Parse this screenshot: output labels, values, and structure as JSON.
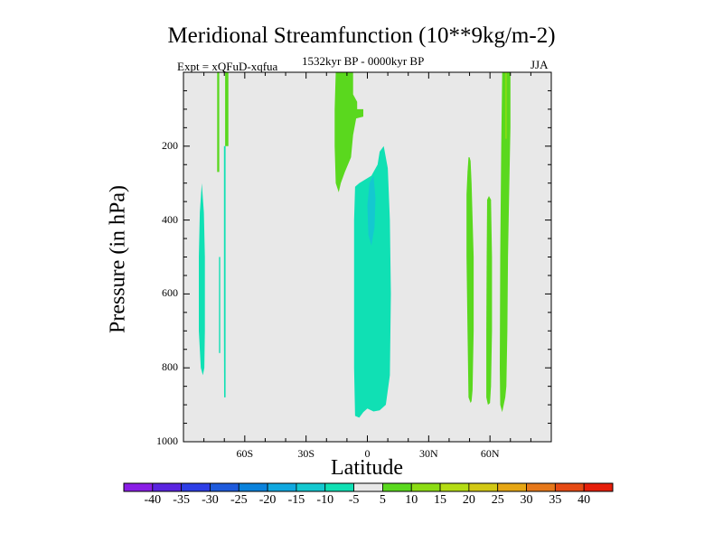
{
  "chart_data": {
    "type": "heatmap",
    "title": "Meridional Streamfunction (10**9kg/m-2)",
    "subtitle_left": "Expt = xQFuD-xqfua",
    "subtitle_center": "1532kyr BP - 0000kyr BP",
    "subtitle_right": "JJA",
    "xlabel": "Latitude",
    "ylabel": "Pressure (in hPa)",
    "xlim": [
      -90,
      90
    ],
    "ylim": [
      1000,
      0
    ],
    "x_ticks": [
      {
        "value": -60,
        "label": "60S"
      },
      {
        "value": -30,
        "label": "30S"
      },
      {
        "value": 0,
        "label": "0"
      },
      {
        "value": 30,
        "label": "30N"
      },
      {
        "value": 60,
        "label": "60N"
      }
    ],
    "y_ticks": [
      {
        "value": 200,
        "label": "200"
      },
      {
        "value": 400,
        "label": "400"
      },
      {
        "value": 600,
        "label": "600"
      },
      {
        "value": 800,
        "label": "800"
      },
      {
        "value": 1000,
        "label": "1000"
      }
    ],
    "background_color": "#e8e8e8",
    "colorbar": {
      "labels": [
        "-40",
        "-35",
        "-30",
        "-25",
        "-20",
        "-15",
        "-10",
        "-5",
        "5",
        "10",
        "15",
        "20",
        "25",
        "30",
        "35",
        "40"
      ],
      "colors": [
        "#8a1ee6",
        "#5a24e0",
        "#2d3ee6",
        "#1e5adc",
        "#0a82dc",
        "#10a8e0",
        "#14c8d0",
        "#10e0b4",
        "#e8e8e8",
        "#5ad81e",
        "#8cdc14",
        "#b4dc14",
        "#d2c814",
        "#e6a614",
        "#e6781a",
        "#e64a14",
        "#e61e0a"
      ]
    },
    "regions": [
      {
        "name": "sh-highlat-negative",
        "color": "#10e0b4",
        "sign": "negative",
        "points": [
          [
            -81,
            300
          ],
          [
            -80,
            380
          ],
          [
            -79.5,
            500
          ],
          [
            -79.5,
            700
          ],
          [
            -79.8,
            800
          ],
          [
            -80.5,
            820
          ],
          [
            -81.5,
            800
          ],
          [
            -82.5,
            700
          ],
          [
            -82.5,
            500
          ],
          [
            -82,
            380
          ]
        ]
      },
      {
        "name": "sh-thin-negative-a",
        "color": "#10e0b4",
        "sign": "negative",
        "points": [
          [
            -72,
            500
          ],
          [
            -72.6,
            500
          ],
          [
            -72.6,
            760
          ],
          [
            -72,
            760
          ]
        ]
      },
      {
        "name": "sh-thin-negative-b",
        "color": "#10e0b4",
        "sign": "negative",
        "points": [
          [
            -69.4,
            200
          ],
          [
            -70.2,
            200
          ],
          [
            -70.2,
            700
          ],
          [
            -70.1,
            880
          ],
          [
            -69.4,
            880
          ]
        ]
      },
      {
        "name": "sh-thin-positive-a",
        "color": "#5ad81e",
        "sign": "positive",
        "points": [
          [
            -72.5,
            0
          ],
          [
            -73.5,
            0
          ],
          [
            -73.5,
            270
          ],
          [
            -72.5,
            270
          ]
        ]
      },
      {
        "name": "sh-thin-positive-b",
        "color": "#5ad81e",
        "sign": "positive",
        "points": [
          [
            -68,
            0
          ],
          [
            -69.6,
            0
          ],
          [
            -69.6,
            200
          ],
          [
            -68,
            200
          ]
        ]
      },
      {
        "name": "tropical-upper-positive",
        "color": "#5ad81e",
        "sign": "positive",
        "points": [
          [
            -15.5,
            0
          ],
          [
            -7,
            0
          ],
          [
            -7,
            60
          ],
          [
            -5,
            80
          ],
          [
            -5,
            100
          ],
          [
            -2,
            100
          ],
          [
            -2,
            120
          ],
          [
            -5.5,
            125
          ],
          [
            -7,
            170
          ],
          [
            -8,
            230
          ],
          [
            -11,
            270
          ],
          [
            -13,
            300
          ],
          [
            -14,
            325
          ],
          [
            -15.5,
            300
          ],
          [
            -16,
            200
          ],
          [
            -16,
            100
          ]
        ]
      },
      {
        "name": "tropical-deep-negative",
        "color": "#10e0b4",
        "sign": "negative",
        "points": [
          [
            8,
            200
          ],
          [
            6,
            215
          ],
          [
            5,
            250
          ],
          [
            2,
            280
          ],
          [
            -4,
            300
          ],
          [
            -6,
            310
          ],
          [
            -6.5,
            400
          ],
          [
            -6.5,
            600
          ],
          [
            -6.5,
            800
          ],
          [
            -6,
            930
          ],
          [
            -4,
            935
          ],
          [
            -2,
            920
          ],
          [
            0,
            910
          ],
          [
            3,
            918
          ],
          [
            6,
            915
          ],
          [
            9,
            900
          ],
          [
            11,
            820
          ],
          [
            11.5,
            600
          ],
          [
            11,
            400
          ],
          [
            10,
            260
          ]
        ]
      },
      {
        "name": "tropical-inner-negative",
        "color": "#14c8d0",
        "sign": "negative",
        "points": [
          [
            3,
            280
          ],
          [
            1,
            300
          ],
          [
            0,
            360
          ],
          [
            0.5,
            440
          ],
          [
            2,
            470
          ],
          [
            3.5,
            420
          ],
          [
            4,
            340
          ]
        ]
      },
      {
        "name": "nh-midlat-positive-a",
        "color": "#5ad81e",
        "sign": "positive",
        "points": [
          [
            50.5,
            240
          ],
          [
            51,
            300
          ],
          [
            52,
            500
          ],
          [
            52,
            700
          ],
          [
            51.5,
            860
          ],
          [
            51,
            890
          ],
          [
            50.5,
            895
          ],
          [
            49.5,
            880
          ],
          [
            49,
            700
          ],
          [
            48.5,
            500
          ],
          [
            48.5,
            330
          ],
          [
            49,
            270
          ],
          [
            49.5,
            230
          ],
          [
            50,
            230
          ]
        ]
      },
      {
        "name": "nh-midlat-positive-b",
        "color": "#5ad81e",
        "sign": "positive",
        "points": [
          [
            59.5,
            335
          ],
          [
            60.5,
            345
          ],
          [
            61,
            500
          ],
          [
            61,
            700
          ],
          [
            60.5,
            850
          ],
          [
            60,
            895
          ],
          [
            59,
            900
          ],
          [
            58.2,
            880
          ],
          [
            58.2,
            700
          ],
          [
            58.4,
            500
          ],
          [
            58.6,
            345
          ]
        ]
      },
      {
        "name": "nh-midlat-positive-c",
        "color": "#5ad81e",
        "sign": "positive",
        "points": [
          [
            66,
            0
          ],
          [
            70,
            0
          ],
          [
            70,
            150
          ],
          [
            69.3,
            350
          ],
          [
            68.8,
            500
          ],
          [
            68.5,
            700
          ],
          [
            68,
            850
          ],
          [
            67.5,
            880
          ],
          [
            66,
            920
          ],
          [
            65,
            900
          ],
          [
            64.8,
            800
          ],
          [
            65,
            500
          ],
          [
            65.5,
            200
          ]
        ]
      },
      {
        "name": "nh-thin-positive",
        "color": "#8cdc14",
        "sign": "positive",
        "points": [
          [
            67.5,
            0
          ],
          [
            68.2,
            0
          ],
          [
            68.2,
            180
          ],
          [
            67.5,
            180
          ]
        ]
      }
    ]
  }
}
